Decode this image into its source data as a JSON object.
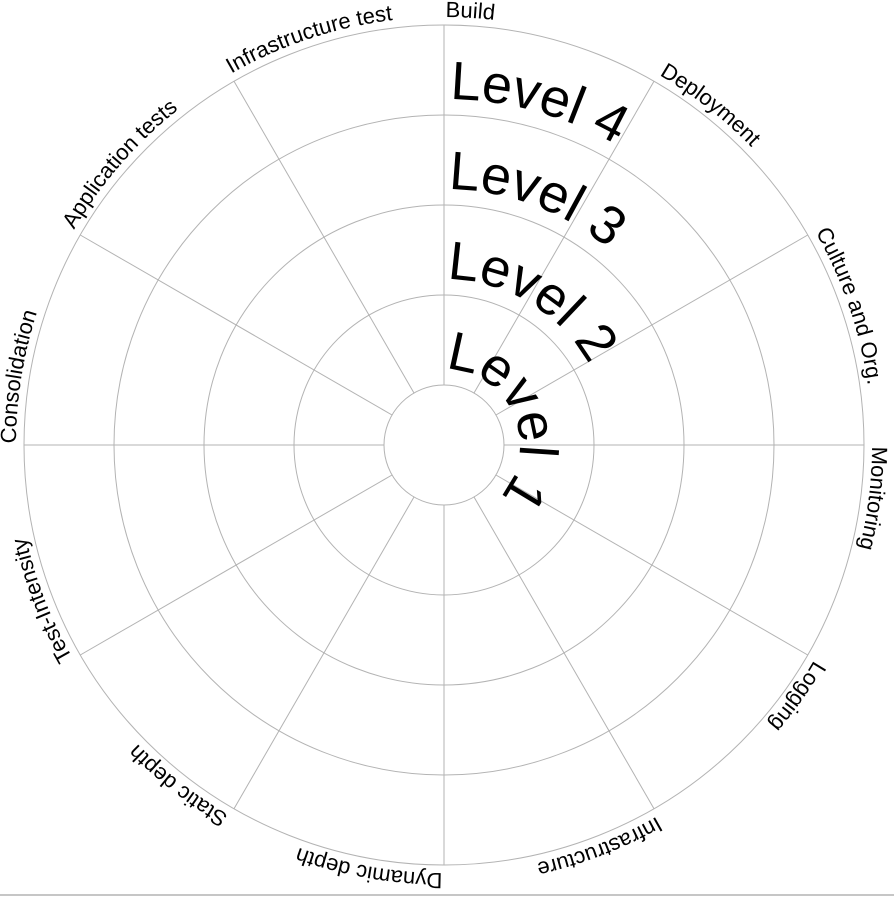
{
  "wheel": {
    "dimensions": [
      "Build",
      "Deployment",
      "Culture and Org.",
      "Monitoring",
      "Logging",
      "Infrastructure",
      "Dynamic depth",
      "Static depth",
      "Test-Intensity",
      "Consolidation",
      "Application tests",
      "Infrastructure test"
    ],
    "levels": [
      "Level 1",
      "Level 2",
      "Level 3",
      "Level 4"
    ],
    "level_count": 4,
    "colors": {
      "lines": "#b3b3b3",
      "text": "#000000"
    }
  }
}
